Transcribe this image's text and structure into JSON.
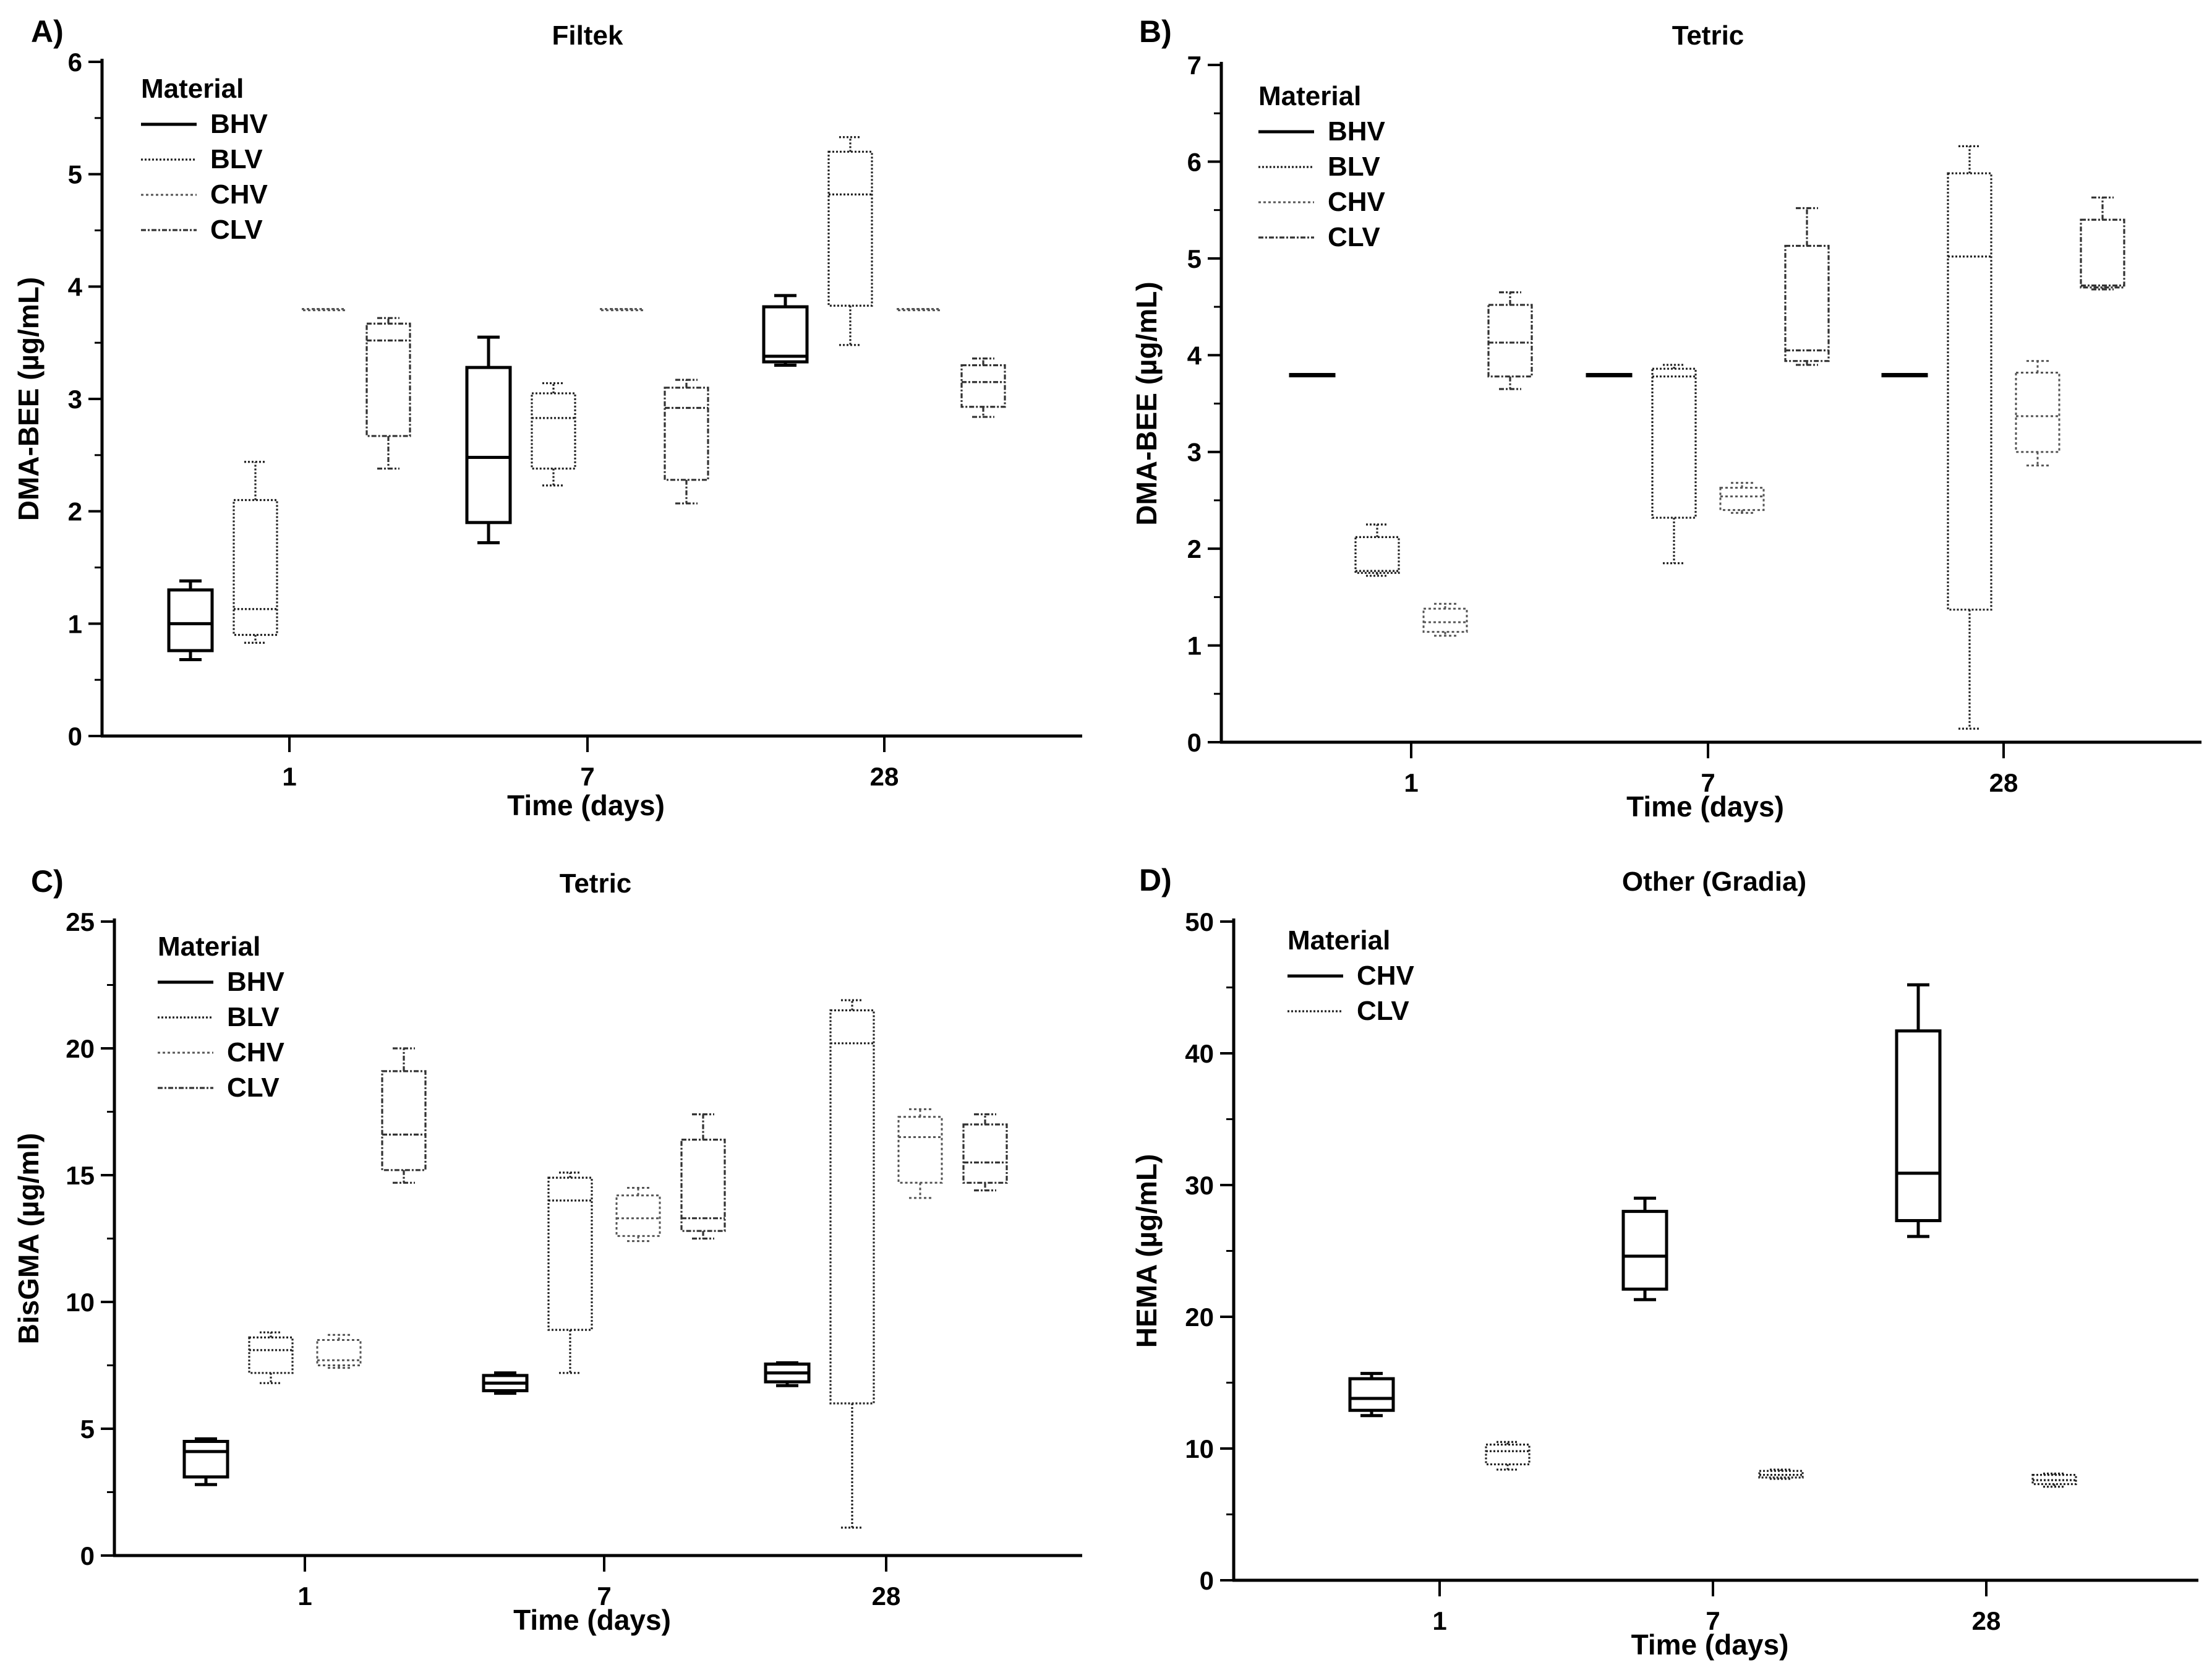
{
  "figure": {
    "note": "Four-panel box plot figure"
  },
  "chart_data": [
    {
      "type": "box",
      "panel": "A)",
      "title": "Filtek",
      "xlabel": "Time (days)",
      "ylabel": "DMA-BEE (µg/mL)",
      "ylim": [
        0,
        6
      ],
      "yticks": [
        0,
        1,
        2,
        3,
        4,
        5,
        6
      ],
      "categories": [
        "1",
        "7",
        "28"
      ],
      "legend_title": "Material",
      "legend_position": "top-left",
      "series": [
        {
          "name": "BHV",
          "style": "solid",
          "boxes": [
            {
              "min": 0.68,
              "q1": 0.76,
              "median": 1.0,
              "q3": 1.3,
              "max": 1.38
            },
            {
              "min": 1.72,
              "q1": 1.9,
              "median": 2.48,
              "q3": 3.28,
              "max": 3.55
            },
            {
              "min": 3.3,
              "q1": 3.33,
              "median": 3.38,
              "q3": 3.82,
              "max": 3.92
            }
          ]
        },
        {
          "name": "BLV",
          "style": "dense-dot",
          "boxes": [
            {
              "min": 0.83,
              "q1": 0.9,
              "median": 1.13,
              "q3": 2.1,
              "max": 2.44
            },
            {
              "min": 2.23,
              "q1": 2.38,
              "median": 2.83,
              "q3": 3.05,
              "max": 3.14
            },
            {
              "min": 3.48,
              "q1": 3.83,
              "median": 4.82,
              "q3": 5.2,
              "max": 5.33
            }
          ]
        },
        {
          "name": "CHV",
          "style": "light-dot",
          "boxes": [
            {
              "min": 3.8,
              "q1": 3.8,
              "median": 3.8,
              "q3": 3.8,
              "max": 3.8
            },
            {
              "min": 3.8,
              "q1": 3.8,
              "median": 3.8,
              "q3": 3.8,
              "max": 3.8
            },
            {
              "min": 3.8,
              "q1": 3.8,
              "median": 3.8,
              "q3": 3.8,
              "max": 3.8
            }
          ]
        },
        {
          "name": "CLV",
          "style": "dash-dot",
          "boxes": [
            {
              "min": 2.38,
              "q1": 2.67,
              "median": 3.52,
              "q3": 3.67,
              "max": 3.72
            },
            {
              "min": 2.07,
              "q1": 2.28,
              "median": 2.92,
              "q3": 3.1,
              "max": 3.17
            },
            {
              "min": 2.84,
              "q1": 2.93,
              "median": 3.15,
              "q3": 3.3,
              "max": 3.36
            }
          ]
        }
      ]
    },
    {
      "type": "box",
      "panel": "B)",
      "title": "Tetric",
      "xlabel": "Time (days)",
      "ylabel": "DMA-BEE (µg/mL)",
      "ylim": [
        0,
        7
      ],
      "yticks": [
        0,
        1,
        2,
        3,
        4,
        5,
        6,
        7
      ],
      "categories": [
        "1",
        "7",
        "28"
      ],
      "legend_title": "Material",
      "legend_position": "top-left",
      "series": [
        {
          "name": "BHV",
          "style": "solid",
          "boxes": [
            {
              "min": 3.8,
              "q1": 3.8,
              "median": 3.8,
              "q3": 3.8,
              "max": 3.8
            },
            {
              "min": 3.8,
              "q1": 3.8,
              "median": 3.8,
              "q3": 3.8,
              "max": 3.8
            },
            {
              "min": 3.8,
              "q1": 3.8,
              "median": 3.8,
              "q3": 3.8,
              "max": 3.8
            }
          ]
        },
        {
          "name": "BLV",
          "style": "dense-dot",
          "boxes": [
            {
              "min": 1.72,
              "q1": 1.75,
              "median": 1.77,
              "q3": 2.12,
              "max": 2.25
            },
            {
              "min": 1.85,
              "q1": 2.32,
              "median": 3.78,
              "q3": 3.86,
              "max": 3.9
            },
            {
              "min": 0.14,
              "q1": 1.37,
              "median": 5.02,
              "q3": 5.88,
              "max": 6.16
            }
          ]
        },
        {
          "name": "CHV",
          "style": "light-dot",
          "boxes": [
            {
              "min": 1.1,
              "q1": 1.14,
              "median": 1.24,
              "q3": 1.38,
              "max": 1.43
            },
            {
              "min": 2.37,
              "q1": 2.4,
              "median": 2.54,
              "q3": 2.63,
              "max": 2.68
            },
            {
              "min": 2.86,
              "q1": 3.0,
              "median": 3.37,
              "q3": 3.82,
              "max": 3.94
            }
          ]
        },
        {
          "name": "CLV",
          "style": "dash-dot",
          "boxes": [
            {
              "min": 3.65,
              "q1": 3.78,
              "median": 4.13,
              "q3": 4.52,
              "max": 4.65
            },
            {
              "min": 3.9,
              "q1": 3.94,
              "median": 4.05,
              "q3": 5.13,
              "max": 5.52
            },
            {
              "min": 4.68,
              "q1": 4.7,
              "median": 4.72,
              "q3": 5.4,
              "max": 5.63
            }
          ]
        }
      ]
    },
    {
      "type": "box",
      "panel": "C)",
      "title": "Tetric",
      "xlabel": "Time (days)",
      "ylabel": "BisGMA (µg/ml)",
      "ylim": [
        0,
        25
      ],
      "yticks": [
        0,
        5,
        10,
        15,
        20,
        25
      ],
      "categories": [
        "1",
        "7",
        "28"
      ],
      "legend_title": "Material",
      "legend_position": "top-left",
      "series": [
        {
          "name": "BHV",
          "style": "solid",
          "boxes": [
            {
              "min": 2.8,
              "q1": 3.1,
              "median": 4.1,
              "q3": 4.5,
              "max": 4.6
            },
            {
              "min": 6.4,
              "q1": 6.5,
              "median": 6.8,
              "q3": 7.1,
              "max": 7.2
            },
            {
              "min": 6.7,
              "q1": 6.85,
              "median": 7.2,
              "q3": 7.55,
              "max": 7.6
            }
          ]
        },
        {
          "name": "BLV",
          "style": "dense-dot",
          "boxes": [
            {
              "min": 6.8,
              "q1": 7.2,
              "median": 8.1,
              "q3": 8.6,
              "max": 8.8
            },
            {
              "min": 7.2,
              "q1": 8.9,
              "median": 14.0,
              "q3": 14.9,
              "max": 15.1
            },
            {
              "min": 1.1,
              "q1": 6.0,
              "median": 20.2,
              "q3": 21.5,
              "max": 21.9
            }
          ]
        },
        {
          "name": "CHV",
          "style": "light-dot",
          "boxes": [
            {
              "min": 7.4,
              "q1": 7.5,
              "median": 7.7,
              "q3": 8.5,
              "max": 8.7
            },
            {
              "min": 12.4,
              "q1": 12.6,
              "median": 13.3,
              "q3": 14.2,
              "max": 14.5
            },
            {
              "min": 14.1,
              "q1": 14.7,
              "median": 16.5,
              "q3": 17.3,
              "max": 17.6
            }
          ]
        },
        {
          "name": "CLV",
          "style": "dash-dot",
          "boxes": [
            {
              "min": 14.7,
              "q1": 15.2,
              "median": 16.6,
              "q3": 19.1,
              "max": 20.0
            },
            {
              "min": 12.5,
              "q1": 12.8,
              "median": 13.3,
              "q3": 16.4,
              "max": 17.4
            },
            {
              "min": 14.4,
              "q1": 14.7,
              "median": 15.5,
              "q3": 17.0,
              "max": 17.4
            }
          ]
        }
      ]
    },
    {
      "type": "box",
      "panel": "D)",
      "title": "Other (Gradia)",
      "xlabel": "Time (days)",
      "ylabel": "HEMA (µg/mL)",
      "ylim": [
        0,
        50
      ],
      "yticks": [
        0,
        10,
        20,
        30,
        40,
        50
      ],
      "categories": [
        "1",
        "7",
        "28"
      ],
      "legend_title": "Material",
      "legend_position": "top-left",
      "series": [
        {
          "name": "CHV",
          "style": "solid",
          "boxes": [
            {
              "min": 12.5,
              "q1": 12.9,
              "median": 13.8,
              "q3": 15.3,
              "max": 15.7
            },
            {
              "min": 21.3,
              "q1": 22.1,
              "median": 24.6,
              "q3": 28.0,
              "max": 29.0
            },
            {
              "min": 26.1,
              "q1": 27.3,
              "median": 30.9,
              "q3": 41.7,
              "max": 45.2
            }
          ]
        },
        {
          "name": "CLV",
          "style": "dense-dot",
          "boxes": [
            {
              "min": 8.4,
              "q1": 8.8,
              "median": 9.8,
              "q3": 10.3,
              "max": 10.5
            },
            {
              "min": 7.7,
              "q1": 7.8,
              "median": 8.0,
              "q3": 8.3,
              "max": 8.4
            },
            {
              "min": 7.1,
              "q1": 7.3,
              "median": 7.6,
              "q3": 8.0,
              "max": 8.1
            }
          ]
        }
      ]
    }
  ]
}
